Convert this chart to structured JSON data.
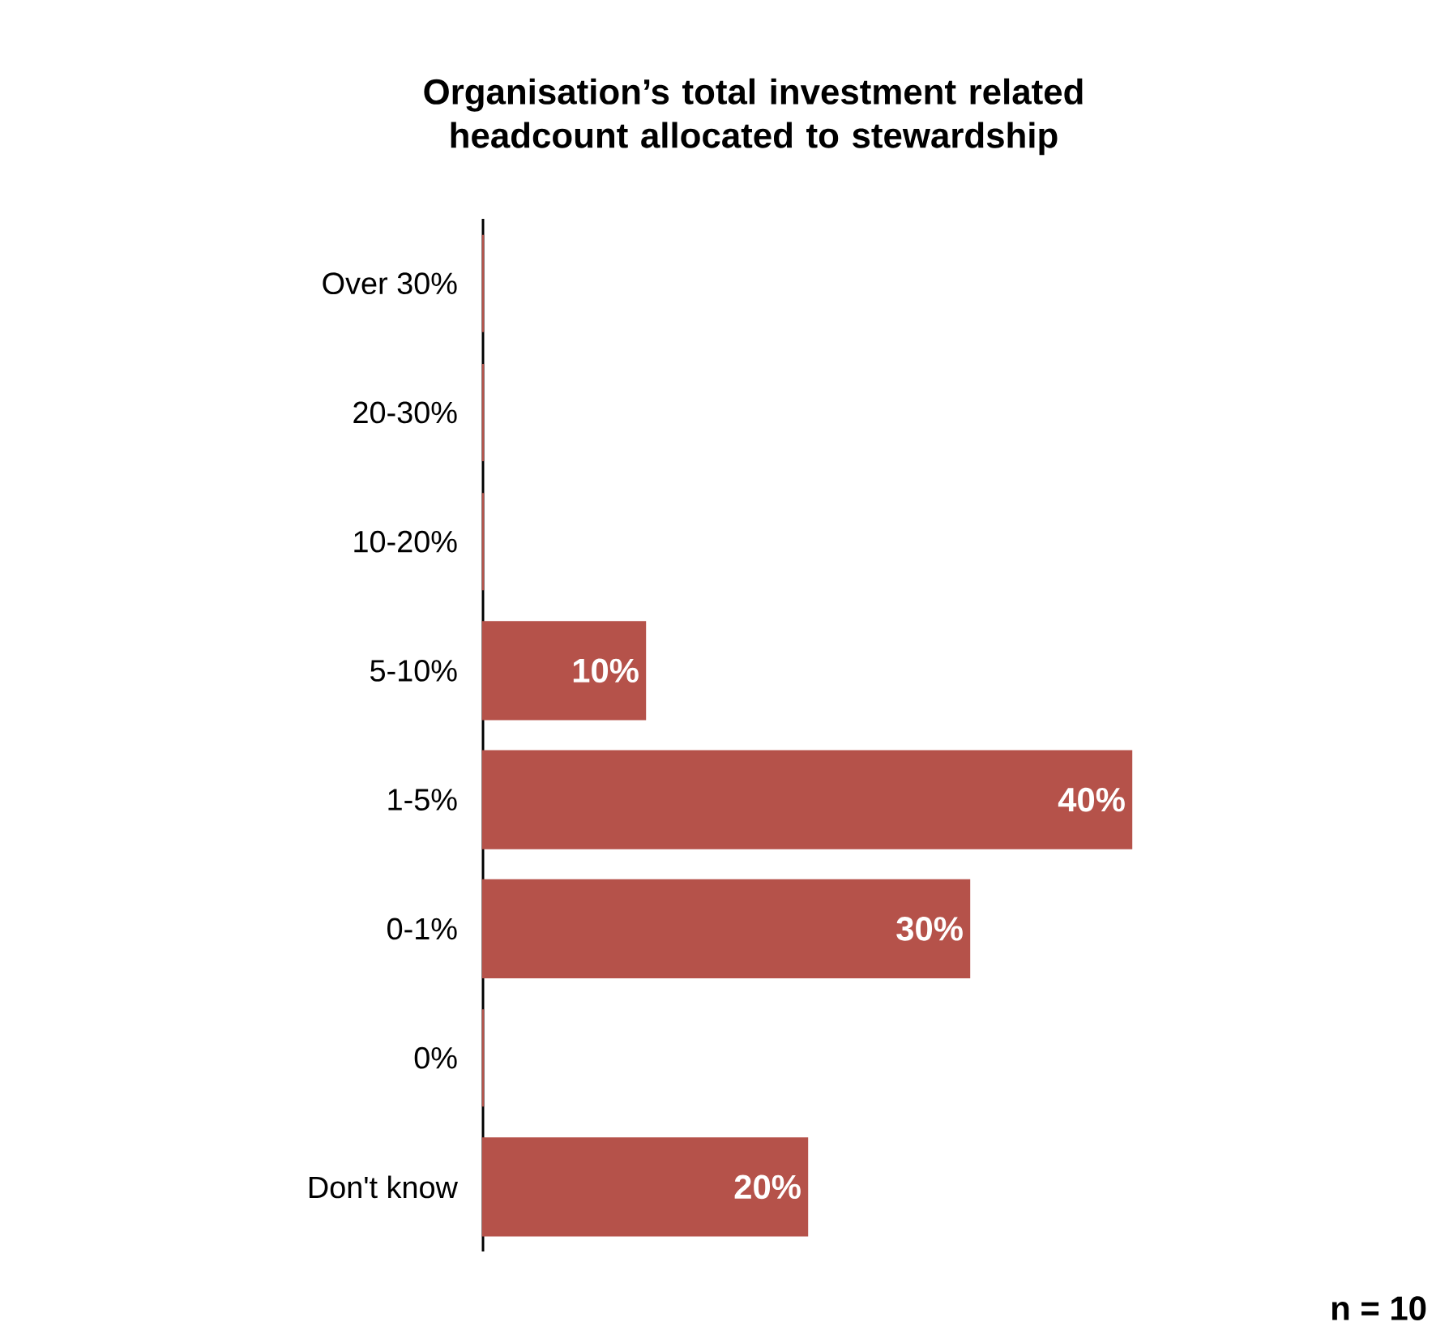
{
  "chart_data": {
    "type": "bar",
    "orientation": "horizontal",
    "title": "Organisation’s total investment related headcount allocated to stewardship",
    "categories": [
      "Over 30%",
      "20-30%",
      "10-20%",
      "5-10%",
      "1-5%",
      "0-1%",
      "0%",
      "Don't know"
    ],
    "values": [
      0,
      0,
      0,
      10,
      40,
      30,
      0,
      20
    ],
    "value_labels": [
      null,
      null,
      null,
      "10%",
      "40%",
      "30%",
      null,
      "20%"
    ],
    "color": "#b5524a",
    "annotations": [
      "n = 10"
    ]
  }
}
